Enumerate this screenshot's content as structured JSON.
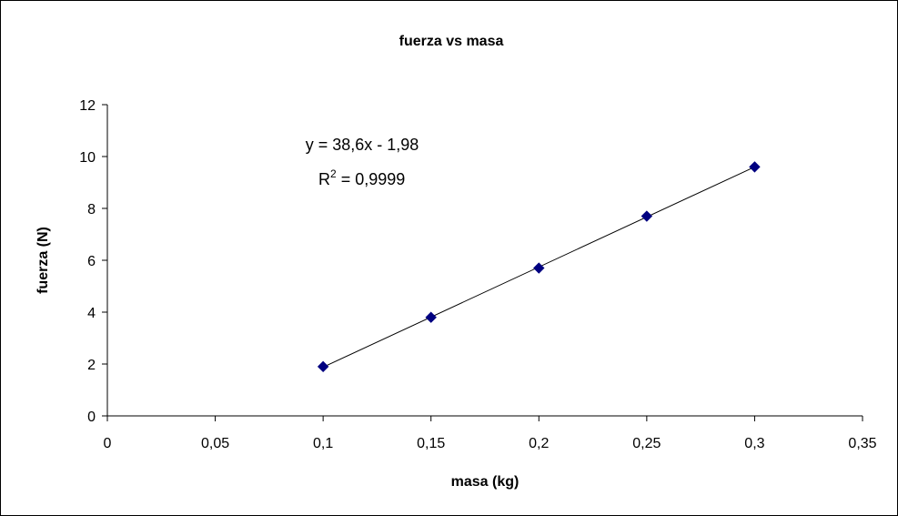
{
  "chart_data": {
    "type": "scatter",
    "title": "fuerza vs masa",
    "xlabel": "masa (kg)",
    "ylabel": "fuerza (N)",
    "xlim": [
      0,
      0.35
    ],
    "ylim": [
      0,
      12
    ],
    "x_ticks": [
      "0",
      "0,05",
      "0,1",
      "0,15",
      "0,2",
      "0,25",
      "0,3",
      "0,35"
    ],
    "y_ticks": [
      "0",
      "2",
      "4",
      "6",
      "8",
      "10",
      "12"
    ],
    "x_tick_values": [
      0,
      0.05,
      0.1,
      0.15,
      0.2,
      0.25,
      0.3,
      0.35
    ],
    "y_tick_values": [
      0,
      2,
      4,
      6,
      8,
      10,
      12
    ],
    "grid": false,
    "legend": "none",
    "marker": "diamond",
    "series": [
      {
        "x": [
          0.1,
          0.15,
          0.2,
          0.25,
          0.3
        ],
        "y": [
          1.9,
          3.8,
          5.7,
          7.7,
          9.6
        ],
        "color": "#000080"
      }
    ],
    "trendline": {
      "type": "linear",
      "slope": 38.6,
      "intercept": -1.98,
      "x_range": [
        0.1,
        0.3
      ],
      "color": "#000000",
      "equation": "y = 38,6x - 1,98",
      "r2_prefix": "R",
      "r2_exponent": "2",
      "r2_value": " = 0,9999"
    }
  }
}
